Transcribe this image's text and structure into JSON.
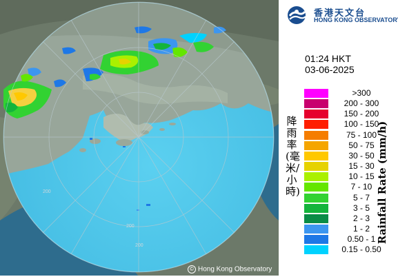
{
  "header": {
    "org_name_zh": "香港天文台",
    "org_name_en": "HONG KONG OBSERVATORY",
    "time": "01:24 HKT",
    "date": "03-06-2025"
  },
  "legend": {
    "title_zh": "降雨率(毫米/小時)",
    "title_en": "Rainfall Rate (mm/h)",
    "items": [
      {
        "label": ">300",
        "color": "#ff00ff"
      },
      {
        "label": "200 - 300",
        "color": "#c8006e"
      },
      {
        "label": "150 - 200",
        "color": "#e6002d"
      },
      {
        "label": "100 - 150",
        "color": "#ff1e00"
      },
      {
        "label": "75 - 100",
        "color": "#f57d00"
      },
      {
        "label": "50 - 75",
        "color": "#f5a500"
      },
      {
        "label": "30 - 50",
        "color": "#ffc800"
      },
      {
        "label": "15 - 30",
        "color": "#e6d200"
      },
      {
        "label": "10 - 15",
        "color": "#aaf000"
      },
      {
        "label": "7 - 10",
        "color": "#64e600"
      },
      {
        "label": "5 - 7",
        "color": "#32d232"
      },
      {
        "label": "3 - 5",
        "color": "#14b43c"
      },
      {
        "label": "2 - 3",
        "color": "#0a8c46"
      },
      {
        "label": "1 - 2",
        "color": "#3c96f0"
      },
      {
        "label": "0.50 - 1",
        "color": "#1e78e6"
      },
      {
        "label": "0.15 - 0.50",
        "color": "#00d2ff"
      }
    ]
  },
  "map": {
    "range_labels": [
      "200",
      "200",
      "200"
    ],
    "copyright": "Hong Kong Observatory",
    "sea_color": "#4fc6ea",
    "land_color": "#7d8a7a"
  }
}
